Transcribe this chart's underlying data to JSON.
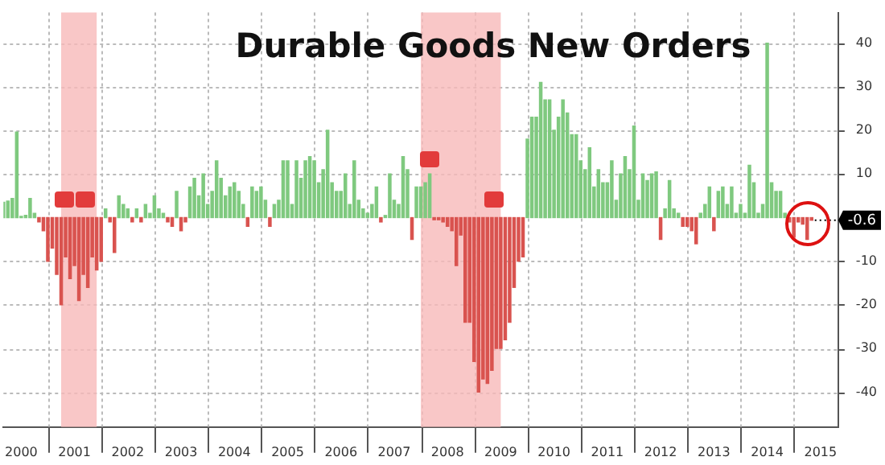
{
  "chart_data": {
    "type": "bar",
    "title": "Durable Goods New Orders",
    "x": [
      "2000-03",
      "2000-04",
      "2000-05",
      "2000-06",
      "2000-07",
      "2000-08",
      "2000-09",
      "2000-10",
      "2000-11",
      "2000-12",
      "2001-01",
      "2001-02",
      "2001-03",
      "2001-04",
      "2001-05",
      "2001-06",
      "2001-07",
      "2001-08",
      "2001-09",
      "2001-10",
      "2001-11",
      "2001-12",
      "2002-01",
      "2002-02",
      "2002-03",
      "2002-04",
      "2002-05",
      "2002-06",
      "2002-07",
      "2002-08",
      "2002-09",
      "2002-10",
      "2002-11",
      "2002-12",
      "2003-01",
      "2003-02",
      "2003-03",
      "2003-04",
      "2003-05",
      "2003-06",
      "2003-07",
      "2003-08",
      "2003-09",
      "2003-10",
      "2003-11",
      "2003-12",
      "2004-01",
      "2004-02",
      "2004-03",
      "2004-04",
      "2004-05",
      "2004-06",
      "2004-07",
      "2004-08",
      "2004-09",
      "2004-10",
      "2004-11",
      "2004-12",
      "2005-01",
      "2005-02",
      "2005-03",
      "2005-04",
      "2005-05",
      "2005-06",
      "2005-07",
      "2005-08",
      "2005-09",
      "2005-10",
      "2005-11",
      "2005-12",
      "2006-01",
      "2006-02",
      "2006-03",
      "2006-04",
      "2006-05",
      "2006-06",
      "2006-07",
      "2006-08",
      "2006-09",
      "2006-10",
      "2006-11",
      "2006-12",
      "2007-01",
      "2007-02",
      "2007-03",
      "2007-04",
      "2007-05",
      "2007-06",
      "2007-07",
      "2007-08",
      "2007-09",
      "2007-10",
      "2007-11",
      "2007-12",
      "2008-01",
      "2008-02",
      "2008-03",
      "2008-04",
      "2008-05",
      "2008-06",
      "2008-07",
      "2008-08",
      "2008-09",
      "2008-10",
      "2008-11",
      "2008-12",
      "2009-01",
      "2009-02",
      "2009-03",
      "2009-04",
      "2009-05",
      "2009-06",
      "2009-07",
      "2009-08",
      "2009-09",
      "2009-10",
      "2009-11",
      "2009-12",
      "2010-01",
      "2010-02",
      "2010-03",
      "2010-04",
      "2010-05",
      "2010-06",
      "2010-07",
      "2010-08",
      "2010-09",
      "2010-10",
      "2010-11",
      "2010-12",
      "2011-01",
      "2011-02",
      "2011-03",
      "2011-04",
      "2011-05",
      "2011-06",
      "2011-07",
      "2011-08",
      "2011-09",
      "2011-10",
      "2011-11",
      "2011-12",
      "2012-01",
      "2012-02",
      "2012-03",
      "2012-04",
      "2012-05",
      "2012-06",
      "2012-07",
      "2012-08",
      "2012-09",
      "2012-10",
      "2012-11",
      "2012-12",
      "2013-01",
      "2013-02",
      "2013-03",
      "2013-04",
      "2013-05",
      "2013-06",
      "2013-07",
      "2013-08",
      "2013-09",
      "2013-10",
      "2013-11",
      "2013-12",
      "2014-01",
      "2014-02",
      "2014-03",
      "2014-04",
      "2014-05",
      "2014-06",
      "2014-07",
      "2014-08",
      "2014-09",
      "2014-10",
      "2014-11",
      "2014-12",
      "2015-01",
      "2015-02",
      "2015-03",
      "2015-04",
      "2015-05"
    ],
    "values": [
      3.5,
      3.8,
      4.4,
      19.6,
      0.3,
      0.5,
      4.4,
      1,
      -1,
      -3,
      -10,
      -7,
      -13,
      -20,
      -9,
      -14,
      -11,
      -19,
      -13,
      -16,
      -9,
      -12,
      -10,
      2,
      -1,
      -8,
      5,
      3,
      2,
      -1,
      2,
      -1,
      3,
      1,
      5,
      2,
      1,
      -1,
      -2,
      6,
      -3,
      -1,
      7,
      9,
      5,
      10,
      3,
      6,
      13,
      9,
      5,
      7,
      8,
      6,
      3,
      -2,
      7,
      6,
      7,
      4,
      -2,
      3,
      4,
      13,
      13,
      3,
      13,
      9,
      13,
      14,
      13,
      8,
      11,
      20,
      8,
      6,
      6,
      10,
      3,
      13,
      4,
      2,
      1,
      3,
      7,
      -1,
      0.5,
      10,
      4,
      3,
      14,
      11,
      -5,
      7,
      7,
      8,
      10,
      -0.5,
      -0.5,
      -1,
      -2,
      -3,
      -11,
      -4,
      -24,
      -24,
      -33,
      -40,
      -37,
      -38,
      -35,
      -30,
      -30,
      -28,
      -24,
      -16,
      -10,
      -9,
      18,
      23,
      23,
      31,
      27,
      27,
      20,
      23,
      27,
      24,
      19,
      19,
      13,
      11,
      16,
      7,
      11,
      8,
      8,
      13,
      4,
      10,
      14,
      11,
      21,
      4,
      10,
      8.5,
      10,
      10.5,
      -5,
      2,
      8.5,
      2,
      1,
      -2,
      -2,
      -3,
      -6,
      1,
      3,
      7,
      -3,
      6,
      7,
      3,
      7,
      1,
      3,
      1,
      12,
      8,
      1,
      3,
      40,
      8,
      6,
      6,
      1,
      -1,
      -4.5,
      -1,
      -1.5,
      -5,
      -0.6
    ],
    "colors": [
      "#7fc97f",
      "#7fc97f",
      "#7fc97f",
      "#7fc97f",
      "#7fc97f",
      "#7fc97f",
      "#7fc97f",
      "#7fc97f",
      "#d9534f",
      "#d9534f",
      "#d9534f",
      "#d9534f",
      "#d9534f",
      "#d9534f",
      "#d9534f",
      "#d9534f",
      "#d9534f",
      "#d9534f",
      "#d9534f",
      "#d9534f",
      "#d9534f",
      "#d9534f",
      "#d9534f",
      "#7fc97f",
      "#d9534f",
      "#d9534f",
      "#7fc97f",
      "#7fc97f",
      "#7fc97f",
      "#d9534f",
      "#7fc97f",
      "#d9534f",
      "#7fc97f",
      "#7fc97f",
      "#7fc97f",
      "#7fc97f",
      "#7fc97f",
      "#d9534f",
      "#d9534f",
      "#7fc97f",
      "#d9534f",
      "#d9534f",
      "#7fc97f",
      "#7fc97f",
      "#7fc97f",
      "#7fc97f",
      "#7fc97f",
      "#7fc97f",
      "#7fc97f",
      "#7fc97f",
      "#7fc97f",
      "#7fc97f",
      "#7fc97f",
      "#7fc97f",
      "#7fc97f",
      "#d9534f",
      "#7fc97f",
      "#7fc97f",
      "#7fc97f",
      "#7fc97f",
      "#d9534f",
      "#7fc97f",
      "#7fc97f",
      "#7fc97f",
      "#7fc97f",
      "#7fc97f",
      "#7fc97f",
      "#7fc97f",
      "#7fc97f",
      "#7fc97f",
      "#7fc97f",
      "#7fc97f",
      "#7fc97f",
      "#7fc97f",
      "#7fc97f",
      "#7fc97f",
      "#7fc97f",
      "#7fc97f",
      "#7fc97f",
      "#7fc97f",
      "#7fc97f",
      "#7fc97f",
      "#7fc97f",
      "#7fc97f",
      "#7fc97f",
      "#d9534f",
      "#7fc97f",
      "#7fc97f",
      "#7fc97f",
      "#7fc97f",
      "#7fc97f",
      "#7fc97f",
      "#d9534f",
      "#7fc97f",
      "#7fc97f",
      "#7fc97f",
      "#7fc97f",
      "#d9534f",
      "#d9534f",
      "#d9534f",
      "#d9534f",
      "#d9534f",
      "#d9534f",
      "#d9534f",
      "#d9534f",
      "#d9534f",
      "#d9534f",
      "#d9534f",
      "#d9534f",
      "#d9534f",
      "#d9534f",
      "#d9534f",
      "#d9534f",
      "#d9534f",
      "#d9534f",
      "#d9534f",
      "#d9534f",
      "#d9534f",
      "#7fc97f",
      "#7fc97f",
      "#7fc97f",
      "#7fc97f",
      "#7fc97f",
      "#7fc97f",
      "#7fc97f",
      "#7fc97f",
      "#7fc97f",
      "#7fc97f",
      "#7fc97f",
      "#7fc97f",
      "#7fc97f",
      "#7fc97f",
      "#7fc97f",
      "#7fc97f",
      "#7fc97f",
      "#7fc97f",
      "#7fc97f",
      "#7fc97f",
      "#7fc97f",
      "#7fc97f",
      "#7fc97f",
      "#7fc97f",
      "#7fc97f",
      "#7fc97f",
      "#7fc97f",
      "#7fc97f",
      "#7fc97f",
      "#7fc97f",
      "#d9534f",
      "#7fc97f",
      "#7fc97f",
      "#7fc97f",
      "#7fc97f",
      "#d9534f",
      "#d9534f",
      "#d9534f",
      "#d9534f",
      "#7fc97f",
      "#7fc97f",
      "#7fc97f",
      "#d9534f",
      "#7fc97f",
      "#7fc97f",
      "#7fc97f",
      "#7fc97f",
      "#7fc97f",
      "#7fc97f",
      "#7fc97f",
      "#7fc97f",
      "#7fc97f",
      "#7fc97f",
      "#7fc97f",
      "#7fc97f",
      "#7fc97f",
      "#7fc97f",
      "#7fc97f",
      "#7fc97f",
      "#d9534f",
      "#d9534f",
      "#d9534f",
      "#d9534f",
      "#d9534f",
      "#d9534f"
    ],
    "xlim": [
      "2000-03",
      "2015-11"
    ],
    "xticks": [
      {
        "value": "2000-07",
        "label": "2000"
      },
      {
        "value": "2001",
        "label": null
      },
      {
        "value": "2001-07",
        "label": "2001"
      },
      {
        "value": "2002",
        "label": null
      },
      {
        "value": "2002-07",
        "label": "2002"
      },
      {
        "value": "2003",
        "label": null
      },
      {
        "value": "2003-07",
        "label": "2003"
      },
      {
        "value": "2004",
        "label": null
      },
      {
        "value": "2004-07",
        "label": "2004"
      },
      {
        "value": "2005",
        "label": null
      },
      {
        "value": "2005-07",
        "label": "2005"
      },
      {
        "value": "2006",
        "label": null
      },
      {
        "value": "2006-07",
        "label": "2006"
      },
      {
        "value": "2007",
        "label": null
      },
      {
        "value": "2007-07",
        "label": "2007"
      },
      {
        "value": "2008",
        "label": null
      },
      {
        "value": "2008-07",
        "label": "2008"
      },
      {
        "value": "2009",
        "label": null
      },
      {
        "value": "2009-07",
        "label": "2009"
      },
      {
        "value": "2010",
        "label": null
      },
      {
        "value": "2010-07",
        "label": "2010"
      },
      {
        "value": "2011",
        "label": null
      },
      {
        "value": "2011-07",
        "label": "2011"
      },
      {
        "value": "2012",
        "label": null
      },
      {
        "value": "2012-07",
        "label": "2012"
      },
      {
        "value": "2013",
        "label": null
      },
      {
        "value": "2013-07",
        "label": "2013"
      },
      {
        "value": "2014",
        "label": null
      },
      {
        "value": "2014-07",
        "label": "2014"
      },
      {
        "value": "2015",
        "label": null
      },
      {
        "value": "2015-07",
        "label": "2015"
      }
    ],
    "ylim": [
      -48,
      47
    ],
    "yticks": [
      -40,
      -30,
      -20,
      -10,
      10,
      20,
      30,
      40
    ],
    "grid": true,
    "bands": [
      {
        "axis": "x",
        "from": "2001-04",
        "to": "2001-12",
        "color": "#f7b9b9"
      },
      {
        "axis": "x",
        "from": "2008-01",
        "to": "2009-07",
        "color": "#f7b9b9"
      }
    ],
    "annotations": [
      {
        "text": "-0.6",
        "x": "2015-05",
        "y": -0.6
      }
    ]
  }
}
